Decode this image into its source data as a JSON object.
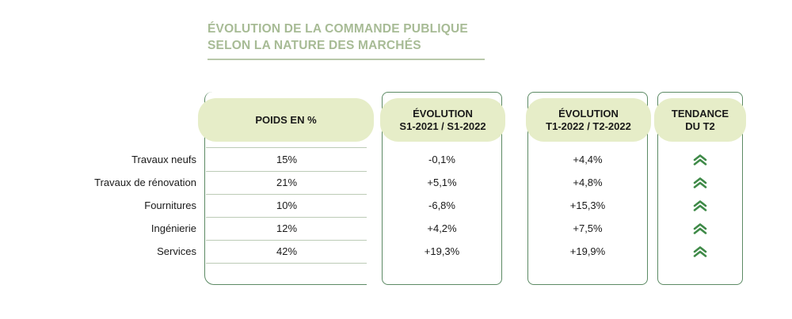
{
  "title": {
    "line1": "ÉVOLUTION DE LA COMMANDE PUBLIQUE",
    "line2": "SELON LA NATURE DES MARCHÉS"
  },
  "columns": {
    "weight": "POIDS EN %",
    "evol_s_line1": "ÉVOLUTION",
    "evol_s_line2": "S1-2021 / S1-2022",
    "evol_t_line1": "ÉVOLUTION",
    "evol_t_line2": "T1-2022 / T2-2022",
    "trend_line1": "TENDANCE",
    "trend_line2": "DU T2"
  },
  "rows": [
    {
      "label": "Travaux neufs",
      "weight": "15%",
      "evol_s": "-0,1%",
      "evol_t": "+4,4%",
      "trend": "up"
    },
    {
      "label": "Travaux de rénovation",
      "weight": "21%",
      "evol_s": "+5,1%",
      "evol_t": "+4,8%",
      "trend": "up"
    },
    {
      "label": "Fournitures",
      "weight": "10%",
      "evol_s": "-6,8%",
      "evol_t": "+15,3%",
      "trend": "up"
    },
    {
      "label": "Ingénierie",
      "weight": "12%",
      "evol_s": "+4,2%",
      "evol_t": "+7,5%",
      "trend": "up"
    },
    {
      "label": "Services",
      "weight": "42%",
      "evol_s": "+19,3%",
      "evol_t": "+19,9%",
      "trend": "up"
    }
  ],
  "colors": {
    "title": "#a7bb95",
    "border": "#5c8a64",
    "header_fill": "#e6edc8",
    "trend_icon": "#3f8a48"
  },
  "icons": {
    "trend_up": "double-chevron-up-icon"
  }
}
